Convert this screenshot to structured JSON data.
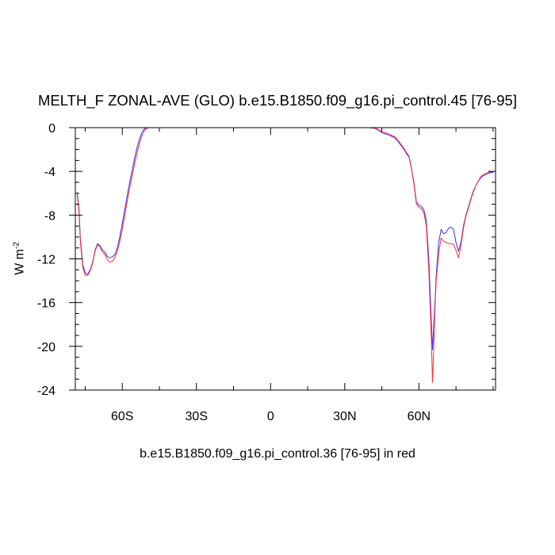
{
  "chart_data": {
    "type": "line",
    "title": "MELTH_F ZONAL-AVE (GLO) b.e15.B1850.f09_g16.pi_control.45 [76-95]",
    "xlabel": "b.e15.B1850.f09_g16.pi_control.36 [76-95] in red",
    "ylabel_base": "W m",
    "ylabel_exp": "-2",
    "xlim": [
      -79,
      91
    ],
    "ylim": [
      -24,
      0
    ],
    "xticks": [
      {
        "value": -60,
        "label": "60S"
      },
      {
        "value": -30,
        "label": "30S"
      },
      {
        "value": 0,
        "label": "0"
      },
      {
        "value": 30,
        "label": "30N"
      },
      {
        "value": 60,
        "label": "60N"
      }
    ],
    "yticks": [
      {
        "value": 0,
        "label": "0"
      },
      {
        "value": -4,
        "label": "-4"
      },
      {
        "value": -8,
        "label": "-8"
      },
      {
        "value": -12,
        "label": "-12"
      },
      {
        "value": -16,
        "label": "-16"
      },
      {
        "value": -20,
        "label": "-20"
      },
      {
        "value": -24,
        "label": "-24"
      }
    ],
    "series": [
      {
        "color": "#3030ff",
        "x": [
          -78.2,
          -77.5,
          -77,
          -76,
          -75,
          -74,
          -73,
          -72,
          -71,
          -70,
          -69,
          -68,
          -67,
          -66,
          -65,
          -64,
          -63,
          -62,
          -61,
          -60,
          -59,
          -58,
          -57,
          -56,
          -55,
          -54,
          -53,
          -52,
          -51,
          -50,
          -49,
          -48,
          -45,
          -40,
          -30,
          -20,
          -10,
          0,
          10,
          20,
          30,
          40,
          42,
          43,
          44,
          45,
          46,
          47,
          48,
          49,
          50,
          51,
          52,
          53,
          54,
          55,
          56,
          57,
          58,
          59,
          60,
          61,
          62,
          63,
          64,
          65,
          65.5,
          66,
          66.5,
          67,
          68,
          69,
          70,
          71,
          72,
          73,
          74,
          75,
          76,
          77,
          78,
          79,
          80,
          81,
          82,
          83,
          84,
          85,
          86,
          87,
          88,
          89,
          90
        ],
        "y": [
          -6.0,
          -7.5,
          -10.0,
          -12.5,
          -13.3,
          -13.4,
          -13.0,
          -12.3,
          -11.2,
          -10.6,
          -10.8,
          -11.2,
          -11.4,
          -11.8,
          -11.9,
          -11.8,
          -11.6,
          -11.0,
          -10.0,
          -8.8,
          -7.5,
          -6.2,
          -5.0,
          -3.9,
          -2.8,
          -1.8,
          -1.0,
          -0.4,
          -0.1,
          0,
          0,
          0,
          0,
          0,
          0,
          0,
          0,
          0,
          0,
          0,
          0,
          0,
          -0.05,
          -0.15,
          -0.3,
          -0.45,
          -0.55,
          -0.6,
          -0.7,
          -0.8,
          -0.9,
          -1.1,
          -1.4,
          -1.7,
          -2.0,
          -2.4,
          -2.7,
          -3.8,
          -5.0,
          -6.8,
          -7.1,
          -7.2,
          -7.5,
          -8.5,
          -12.0,
          -17.5,
          -20.3,
          -18.0,
          -16.0,
          -13.5,
          -10.5,
          -9.3,
          -9.7,
          -9.6,
          -9.2,
          -9.1,
          -9.3,
          -10.5,
          -11.3,
          -10.5,
          -9.0,
          -8.0,
          -7.3,
          -6.5,
          -5.8,
          -5.3,
          -4.9,
          -4.6,
          -4.4,
          -4.3,
          -4.2,
          -4.1,
          -4.1
        ]
      },
      {
        "color": "#ff3030",
        "x": [
          -78.2,
          -77.5,
          -77,
          -76,
          -75,
          -74,
          -73,
          -72,
          -71,
          -70,
          -69,
          -68,
          -67,
          -66,
          -65,
          -64,
          -63,
          -62,
          -61,
          -60,
          -59,
          -58,
          -57,
          -56,
          -55,
          -54,
          -53,
          -52,
          -51,
          -50,
          -49,
          -48,
          -45,
          -40,
          -30,
          -20,
          -10,
          0,
          10,
          20,
          30,
          40,
          42,
          43,
          44,
          45,
          46,
          47,
          48,
          49,
          50,
          51,
          52,
          53,
          54,
          55,
          56,
          57,
          58,
          59,
          60,
          61,
          62,
          63,
          64,
          65,
          65.5,
          66,
          66.5,
          67,
          68,
          69,
          70,
          71,
          72,
          73,
          74,
          75,
          76,
          77,
          78,
          79,
          80,
          81,
          82,
          83,
          84,
          85,
          86,
          87,
          88,
          89,
          90
        ],
        "y": [
          -6.2,
          -7.8,
          -10.3,
          -12.8,
          -13.5,
          -13.5,
          -13.1,
          -12.4,
          -11.3,
          -10.7,
          -10.9,
          -11.4,
          -11.6,
          -12.1,
          -12.3,
          -12.2,
          -11.9,
          -11.3,
          -10.4,
          -9.3,
          -8.0,
          -6.7,
          -5.5,
          -4.4,
          -3.3,
          -2.3,
          -1.4,
          -0.7,
          -0.25,
          -0.05,
          0,
          0,
          0,
          0,
          0,
          0,
          0,
          0,
          0,
          0,
          0,
          0,
          -0.05,
          -0.1,
          -0.25,
          -0.35,
          -0.45,
          -0.5,
          -0.6,
          -0.7,
          -0.8,
          -1.0,
          -1.3,
          -1.6,
          -1.9,
          -2.3,
          -2.6,
          -3.7,
          -5.2,
          -7.0,
          -7.3,
          -7.4,
          -7.8,
          -9.0,
          -13.0,
          -19.0,
          -23.3,
          -20.0,
          -16.5,
          -14.0,
          -11.5,
          -10.1,
          -10.4,
          -10.5,
          -10.6,
          -10.6,
          -10.7,
          -11.2,
          -11.9,
          -10.8,
          -9.2,
          -8.1,
          -7.4,
          -6.6,
          -5.9,
          -5.3,
          -4.9,
          -4.5,
          -4.3,
          -4.2,
          -4.1,
          -4.0,
          -4.0
        ]
      }
    ]
  }
}
